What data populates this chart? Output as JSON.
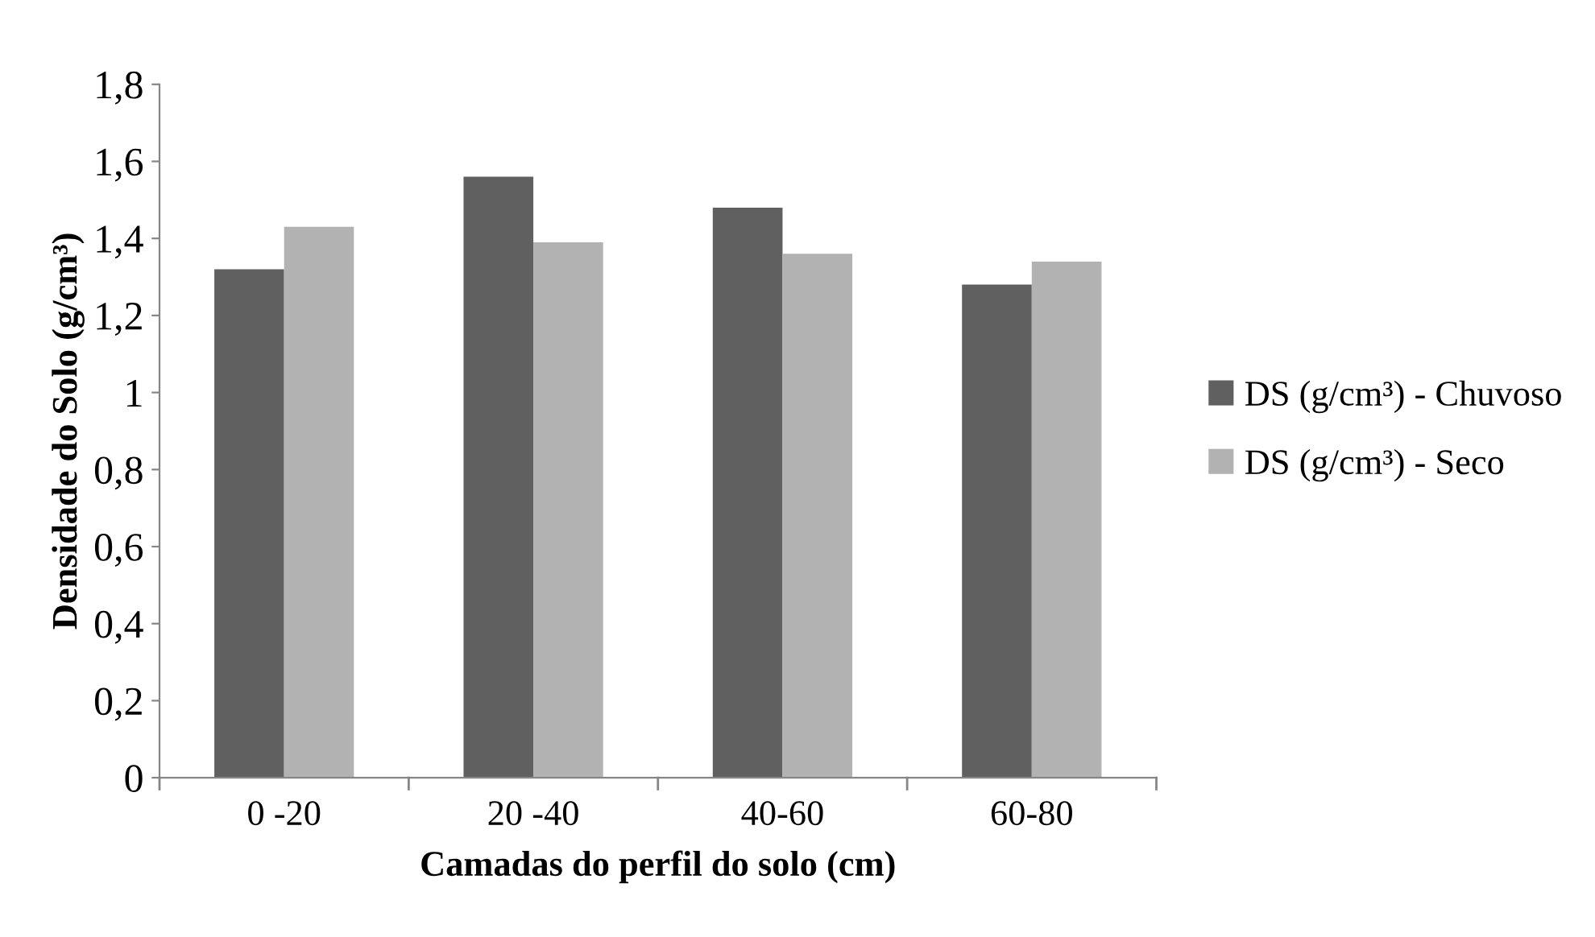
{
  "chart_data": {
    "type": "bar",
    "xlabel": "Camadas do perfil do solo (cm)",
    "ylabel": "Densidade do Solo (g/cm³)",
    "categories": [
      "0 -20",
      "20 -40",
      "40-60",
      "60-80"
    ],
    "series": [
      {
        "name": "DS (g/cm³) - Chuvoso",
        "color": "#606060",
        "values": [
          1.32,
          1.56,
          1.48,
          1.28
        ]
      },
      {
        "name": "DS (g/cm³) - Seco",
        "color": "#b2b2b2",
        "values": [
          1.43,
          1.39,
          1.36,
          1.34
        ]
      }
    ],
    "ylim": [
      0,
      1.8
    ],
    "yticks": [
      0,
      {
        "value": 0.2,
        "label": "0,2"
      },
      {
        "value": 0.4,
        "label": "0,4"
      },
      {
        "value": 0.6,
        "label": "0,6"
      },
      {
        "value": 0.8,
        "label": "0,8"
      },
      1,
      {
        "value": 1.2,
        "label": "1,2"
      },
      {
        "value": 1.4,
        "label": "1,4"
      },
      {
        "value": 1.6,
        "label": "1,6"
      },
      {
        "value": 1.8,
        "label": "1,8"
      }
    ],
    "grid": false,
    "legend": "right"
  }
}
